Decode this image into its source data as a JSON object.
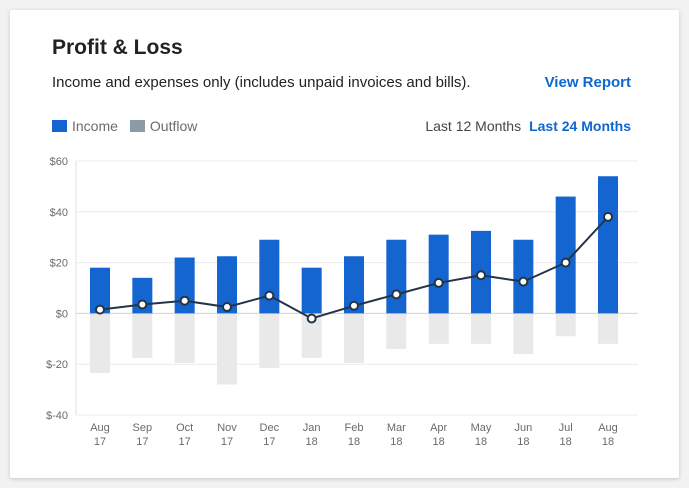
{
  "card": {
    "title": "Profit & Loss",
    "subtitle": "Income and expenses only (includes unpaid invoices and bills).",
    "view_report": "View Report",
    "range_options": [
      "Last 12 Months",
      "Last 24 Months"
    ],
    "selected_range": "Last 24 Months"
  },
  "colors": {
    "income": "#1565d0",
    "outflow": "#e9e9e9",
    "outflow_legend": "#8a9aa6",
    "line": "#243447",
    "accent": "#0d67d1"
  },
  "chart_data": {
    "type": "bar",
    "categories": [
      [
        "Aug",
        "17"
      ],
      [
        "Sep",
        "17"
      ],
      [
        "Oct",
        "17"
      ],
      [
        "Nov",
        "17"
      ],
      [
        "Dec",
        "17"
      ],
      [
        "Jan",
        "18"
      ],
      [
        "Feb",
        "18"
      ],
      [
        "Mar",
        "18"
      ],
      [
        "Apr",
        "18"
      ],
      [
        "May",
        "18"
      ],
      [
        "Jun",
        "18"
      ],
      [
        "Jul",
        "18"
      ],
      [
        "Aug",
        "18"
      ]
    ],
    "series": [
      {
        "name": "Income",
        "type": "bar",
        "values": [
          18,
          14,
          22,
          22.5,
          29,
          18,
          22.5,
          29,
          31,
          32.5,
          29,
          46,
          54
        ]
      },
      {
        "name": "Outflow",
        "type": "bar",
        "values": [
          -23.5,
          -17.5,
          -19.5,
          -28,
          -21.5,
          -17.5,
          -19.5,
          -14,
          -12,
          -12,
          -16,
          -9,
          -12
        ]
      },
      {
        "type": "line",
        "values": [
          1.5,
          3.5,
          5,
          2.5,
          7,
          -2,
          3,
          7.5,
          12,
          15,
          12.5,
          20,
          38
        ]
      }
    ],
    "y_ticks": [
      "$60",
      "$40",
      "$20",
      "$0",
      "$-20",
      "$-40"
    ],
    "ylim": [
      -40,
      60
    ],
    "grid": true,
    "legend_position": "top-left"
  }
}
